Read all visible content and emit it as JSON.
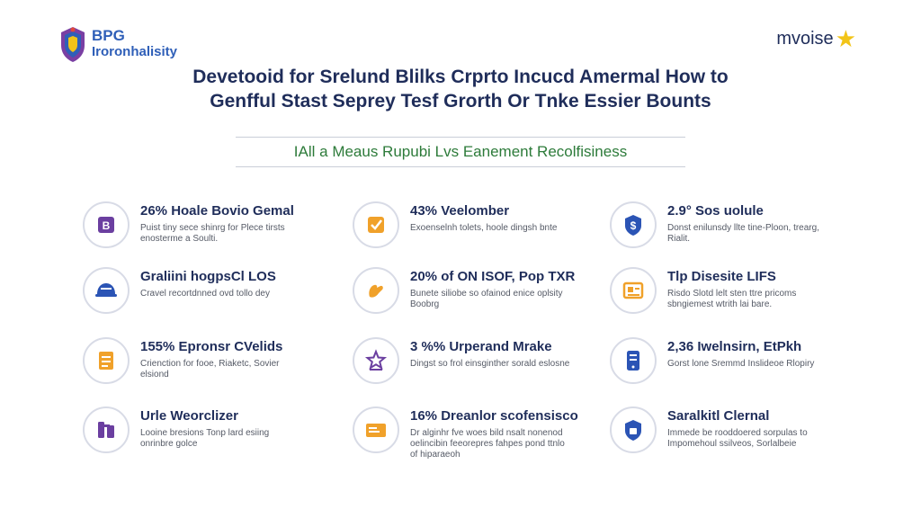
{
  "brand_left": {
    "line1": "BPG",
    "line2": "Iroronhalisity"
  },
  "brand_right": {
    "text": "mvoise",
    "icon": "star-icon"
  },
  "title": {
    "line1": "Devetooid for Srelund Blilks Crprto Incucd Amermal How to",
    "line2": "Genfful Stast Seprey Tesf Grorth Or Tnke Essier Bounts"
  },
  "subtitle": "IAll a Meaus Rupubi Lvs Eanement Recolfisiness",
  "colors": {
    "navy": "#1f2d5a",
    "green": "#2d7b3a",
    "orange": "#f0a12a",
    "purple": "#6b3fa0",
    "blue": "#2b54b5"
  },
  "items": [
    {
      "heading": "26% Hoale Bovio Gemal",
      "desc": "Puist tiny sece shinrg for Plece tirsts enosterme a Soulti.",
      "icon": "b-badge-icon",
      "color": "#6b3fa0"
    },
    {
      "heading": "Graliini hogpsCl LOS",
      "desc": "Cravel recortdnned ovd tollo dey",
      "icon": "helmet-icon",
      "color": "#2b54b5"
    },
    {
      "heading": "155% Epronsr CVelids",
      "desc": "Crienction for fooe, Riaketc, Sovier elsiond",
      "icon": "stack-icon",
      "color": "#f0a12a"
    },
    {
      "heading": "Urle Weorclizer",
      "desc": "Looine bresions Tonp lard esiing onrinbre golce",
      "icon": "tools-icon",
      "color": "#6b3fa0"
    },
    {
      "heading": "43% Veelomber",
      "desc": "Exoenselnh tolets, hoole dingsh bnte",
      "icon": "check-icon",
      "color": "#f0a12a"
    },
    {
      "heading": "20% of ON ISOF, Pop TXR",
      "desc": "Bunete siliobe so ofainod enice oplsity Boobrg",
      "icon": "hand-icon",
      "color": "#f0a12a"
    },
    {
      "heading": "3 %% Urperand Mrake",
      "desc": "Dingst so frol einsginther sorald eslosne",
      "icon": "star-badge-icon",
      "color": "#6b3fa0"
    },
    {
      "heading": "16% Dreanlor scofensisco",
      "desc": "Dr alginhr fve woes bild nsalt nonenod oelincibin feeorepres fahpes pond ttnlo of hiparaeoh",
      "icon": "card-icon",
      "color": "#f0a12a"
    },
    {
      "heading": "2.9° Sos uolule",
      "desc": "Donst enilunsdy llte tine-Ploon, trearg, Rialit.",
      "icon": "dollar-shield-icon",
      "color": "#2b54b5"
    },
    {
      "heading": "Tlp Disesite LIFS",
      "desc": "Risdo Slotd lelt sten ttre pricoms sbngiemest wtrith lai bare.",
      "icon": "id-card-icon",
      "color": "#f0a12a"
    },
    {
      "heading": "2,36 Iwelnsirn, EtPkh",
      "desc": "Gorst lone Sremmd Inslideoe Rlopiry",
      "icon": "phone-icon",
      "color": "#2b54b5"
    },
    {
      "heading": "Saralkitl Clernal",
      "desc": "Immede be rooddoered sorpulas to Impomehoul ssilveos, Sorlalbeie",
      "icon": "shield-icon",
      "color": "#2b54b5"
    }
  ]
}
